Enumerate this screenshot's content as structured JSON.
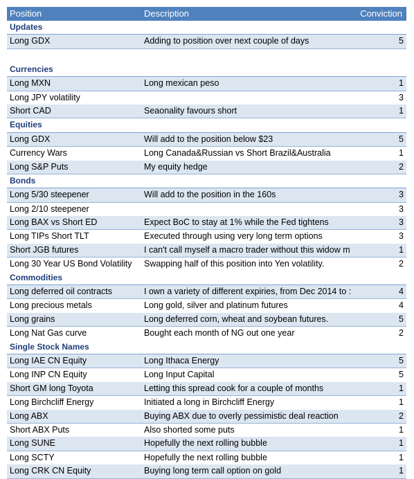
{
  "header": {
    "position": "Position",
    "description": "Description",
    "conviction": "Conviction"
  },
  "sections": [
    {
      "title": "Updates",
      "gapBefore": false,
      "rows": [
        {
          "position": "Long GDX",
          "description": "Adding to position over next couple of days",
          "conviction": "5"
        }
      ]
    },
    {
      "title": "Currencies",
      "gapBefore": true,
      "rows": [
        {
          "position": "Long MXN",
          "description": "Long mexican peso",
          "conviction": "1"
        },
        {
          "position": "Long JPY volatility",
          "description": "",
          "conviction": "3"
        },
        {
          "position": "Short CAD",
          "description": "Seaonality favours short",
          "conviction": "1"
        }
      ]
    },
    {
      "title": "Equities",
      "gapBefore": false,
      "rows": [
        {
          "position": "Long GDX",
          "description": "Will add to the position below $23",
          "conviction": "5"
        },
        {
          "position": "Currency Wars",
          "description": "Long Canada&Russian vs Short Brazil&Australia",
          "conviction": "1"
        },
        {
          "position": "Long S&P Puts",
          "description": "My equity hedge",
          "conviction": "2"
        }
      ]
    },
    {
      "title": "Bonds",
      "gapBefore": false,
      "rows": [
        {
          "position": "Long 5/30 steepener",
          "description": "Will add to the position in the 160s",
          "conviction": "3"
        },
        {
          "position": "Long 2/10 steepener",
          "description": "",
          "conviction": "3"
        },
        {
          "position": "Long BAX vs Short ED",
          "description": "Expect BoC to stay at 1% while the Fed tightens",
          "conviction": "3"
        },
        {
          "position": "Long TIPs Short TLT",
          "description": "Executed through using very long term options",
          "conviction": "3"
        },
        {
          "position": "Short JGB futures",
          "description": "I can't call myself a macro trader without this widow m",
          "conviction": "1"
        },
        {
          "position": "Long 30 Year US Bond Volatility",
          "description": "Swapping half of this position into Yen volatility.",
          "conviction": "2"
        }
      ]
    },
    {
      "title": "Commodities",
      "gapBefore": false,
      "rows": [
        {
          "position": "Long deferred oil contracts",
          "description": "I own a variety of different expiries, from Dec 2014 to :",
          "conviction": "4"
        },
        {
          "position": "Long precious metals",
          "description": "Long gold, silver and platinum futures",
          "conviction": "4"
        },
        {
          "position": "Long grains",
          "description": "Long deferred corn, wheat and soybean futures.",
          "conviction": "5"
        },
        {
          "position": "Long Nat Gas curve",
          "description": "Bought each month of NG out one year",
          "conviction": "2"
        }
      ]
    },
    {
      "title": "Single Stock Names",
      "gapBefore": false,
      "rows": [
        {
          "position": "Long IAE CN Equity",
          "description": "Long Ithaca Energy",
          "conviction": "5"
        },
        {
          "position": "Long INP CN Equity",
          "description": "Long Input Capital",
          "conviction": "5"
        },
        {
          "position": "Short GM long Toyota",
          "description": "Letting this spread cook for a couple of months",
          "conviction": "1"
        },
        {
          "position": "Long Birchcliff Energy",
          "description": "Initiated a long in Birchcliff Energy",
          "conviction": "1"
        },
        {
          "position": "Long ABX",
          "description": "Buying ABX due to overly pessimistic deal reaction",
          "conviction": "2"
        },
        {
          "position": "Short ABX Puts",
          "description": "Also shorted some puts",
          "conviction": "1"
        },
        {
          "position": "Long SUNE",
          "description": "Hopefully the next rolling bubble",
          "conviction": "1"
        },
        {
          "position": "Long SCTY",
          "description": "Hopefully the next rolling bubble",
          "conviction": "1"
        },
        {
          "position": "Long CRK CN Equity",
          "description": "Buying long term call option on gold",
          "conviction": "1"
        }
      ]
    }
  ]
}
